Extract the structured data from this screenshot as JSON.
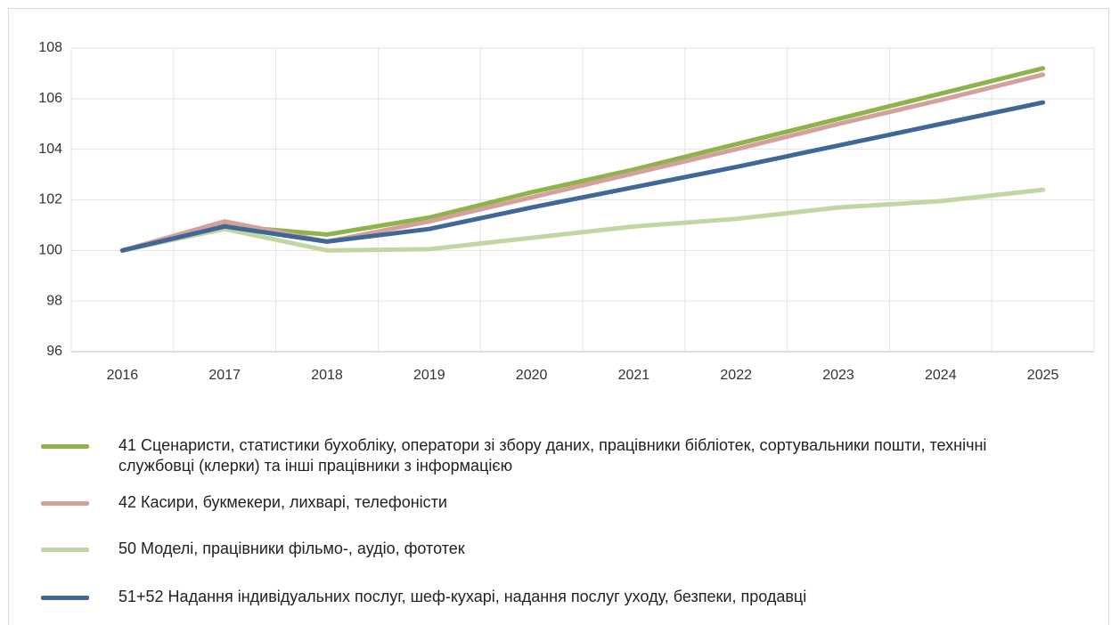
{
  "chart_data": {
    "type": "line",
    "categories": [
      "2016",
      "2017",
      "2018",
      "2019",
      "2020",
      "2021",
      "2022",
      "2023",
      "2024",
      "2025"
    ],
    "series": [
      {
        "name": "41 Сценаристи, статистики бухобліку, оператори зі збору даних, працівники бібліотек, сортувальники пошти, технічні службовці (клерки) та інші працівники з інформацією",
        "color": "#8db34a",
        "values": [
          100,
          100.98,
          100.63,
          101.3,
          102.3,
          103.2,
          104.2,
          105.2,
          106.2,
          107.2
        ]
      },
      {
        "name": "42 Касири, букмекери, лихварі, телефоністи",
        "color": "#d4a09c",
        "values": [
          100,
          101.15,
          100.35,
          101.15,
          102.1,
          103.05,
          104.0,
          105.0,
          105.95,
          106.95
        ]
      },
      {
        "name": "50 Моделі, працівники фільмо-, аудіо, фототек",
        "color": "#c2d6a2",
        "values": [
          100,
          100.85,
          100.0,
          100.05,
          100.5,
          100.95,
          101.25,
          101.7,
          101.95,
          102.4
        ]
      },
      {
        "name": "51+52 Надання індивідуальних послуг, шеф-кухарі, надання послуг уходу, безпеки, продавці",
        "color": "#3f6898",
        "values": [
          100,
          100.95,
          100.35,
          100.85,
          101.7,
          102.5,
          103.3,
          104.15,
          105.0,
          105.85
        ]
      }
    ],
    "ylim": [
      96,
      108
    ],
    "yticks": [
      96,
      98,
      100,
      102,
      104,
      106,
      108
    ],
    "grid": true
  }
}
